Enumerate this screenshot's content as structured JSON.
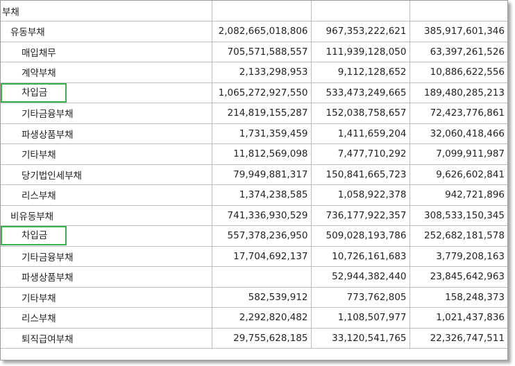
{
  "table": {
    "rows": [
      {
        "label": "부채",
        "level": 0,
        "highlight": false,
        "v1": "",
        "v2": "",
        "v3": ""
      },
      {
        "label": "유동부채",
        "level": 1,
        "highlight": false,
        "v1": "2,082,665,018,806",
        "v2": "967,353,222,621",
        "v3": "385,917,601,346"
      },
      {
        "label": "매입채무",
        "level": 2,
        "highlight": false,
        "v1": "705,571,588,557",
        "v2": "111,939,128,050",
        "v3": "63,397,261,526"
      },
      {
        "label": "계약부채",
        "level": 2,
        "highlight": false,
        "v1": "2,133,298,953",
        "v2": "9,112,128,652",
        "v3": "10,886,622,556"
      },
      {
        "label": "차입금",
        "level": 2,
        "highlight": true,
        "v1": "1,065,272,927,550",
        "v2": "533,473,249,665",
        "v3": "189,480,285,213"
      },
      {
        "label": "기타금융부채",
        "level": 2,
        "highlight": false,
        "v1": "214,819,155,287",
        "v2": "152,038,758,657",
        "v3": "72,423,776,861"
      },
      {
        "label": "파생상품부채",
        "level": 2,
        "highlight": false,
        "v1": "1,731,359,459",
        "v2": "1,411,659,204",
        "v3": "32,060,418,466"
      },
      {
        "label": "기타부채",
        "level": 2,
        "highlight": false,
        "v1": "11,812,569,098",
        "v2": "7,477,710,292",
        "v3": "7,099,911,987"
      },
      {
        "label": "당기법인세부채",
        "level": 2,
        "highlight": false,
        "v1": "79,949,881,317",
        "v2": "150,841,665,723",
        "v3": "9,626,602,841"
      },
      {
        "label": "리스부채",
        "level": 2,
        "highlight": false,
        "v1": "1,374,238,585",
        "v2": "1,058,922,378",
        "v3": "942,721,896"
      },
      {
        "label": "비유동부채",
        "level": 1,
        "highlight": false,
        "v1": "741,336,930,529",
        "v2": "736,177,922,357",
        "v3": "308,533,150,345"
      },
      {
        "label": "차입금",
        "level": 2,
        "highlight": true,
        "v1": "557,378,236,950",
        "v2": "509,028,193,786",
        "v3": "252,682,181,578"
      },
      {
        "label": "기타금융부채",
        "level": 2,
        "highlight": false,
        "v1": "17,704,692,137",
        "v2": "10,726,161,683",
        "v3": "3,779,208,163"
      },
      {
        "label": "파생상품부채",
        "level": 2,
        "highlight": false,
        "v1": "",
        "v2": "52,944,382,440",
        "v3": "23,845,642,963"
      },
      {
        "label": "기타부채",
        "level": 2,
        "highlight": false,
        "v1": "582,539,912",
        "v2": "773,762,805",
        "v3": "158,248,373"
      },
      {
        "label": "리스부채",
        "level": 2,
        "highlight": false,
        "v1": "2,292,820,482",
        "v2": "1,108,507,977",
        "v3": "1,021,437,836"
      },
      {
        "label": "퇴직급여부채",
        "level": 2,
        "highlight": false,
        "v1": "29,755,628,185",
        "v2": "33,120,541,765",
        "v3": "22,326,747,511"
      }
    ],
    "highlight_color": "#35b34a"
  }
}
